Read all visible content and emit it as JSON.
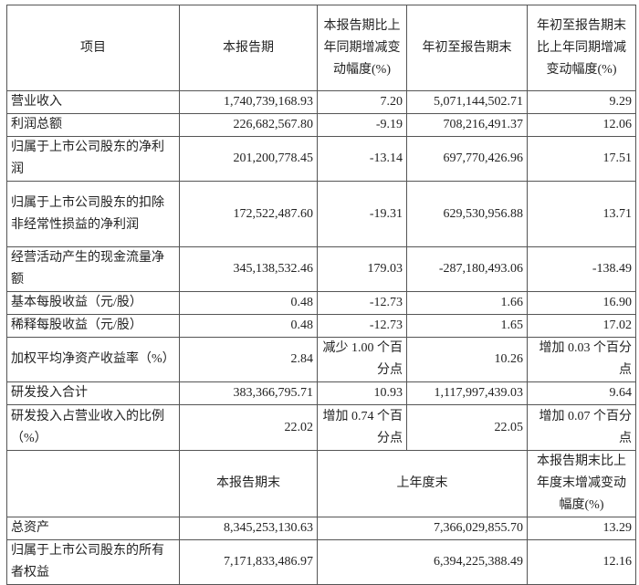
{
  "header": {
    "item": "项目",
    "current_period": "本报告期",
    "current_change": "本报告期比上年同期增减变动幅度(%)",
    "ytd": "年初至报告期末",
    "ytd_change": "年初至报告期末比上年同期增减变动幅度(%)"
  },
  "rows": [
    {
      "item": "营业收入",
      "current": "1,740,739,168.93",
      "change": "7.20",
      "ytd": "5,071,144,502.71",
      "ytd_change": "9.29"
    },
    {
      "item": "利润总额",
      "current": "226,682,567.80",
      "change": "-9.19",
      "ytd": "708,216,491.37",
      "ytd_change": "12.06"
    },
    {
      "item": "归属于上市公司股东的净利润",
      "current": "201,200,778.45",
      "change": "-13.14",
      "ytd": "697,770,426.96",
      "ytd_change": "17.51"
    },
    {
      "item": "归属于上市公司股东的扣除非经常性损益的净利润",
      "current": "172,522,487.60",
      "change": "-19.31",
      "ytd": "629,530,956.88",
      "ytd_change": "13.71"
    },
    {
      "item": "经营活动产生的现金流量净额",
      "current": "345,138,532.46",
      "change": "179.03",
      "ytd": "-287,180,493.06",
      "ytd_change": "-138.49"
    },
    {
      "item": "基本每股收益（元/股）",
      "current": "0.48",
      "change": "-12.73",
      "ytd": "1.66",
      "ytd_change": "16.90"
    },
    {
      "item": "稀释每股收益（元/股）",
      "current": "0.48",
      "change": "-12.73",
      "ytd": "1.65",
      "ytd_change": "17.02"
    },
    {
      "item": "加权平均净资产收益率（%）",
      "current": "2.84",
      "change": "减少 1.00 个百分点",
      "ytd": "10.26",
      "ytd_change": "增加 0.03 个百分点"
    },
    {
      "item": "研发投入合计",
      "current": "383,366,795.71",
      "change": "10.93",
      "ytd": "1,117,997,439.03",
      "ytd_change": "9.64"
    },
    {
      "item": "研发投入占营业收入的比例（%）",
      "current": "22.02",
      "change": "增加 0.74 个百分点",
      "ytd": "22.05",
      "ytd_change": "增加 0.07 个百分点"
    }
  ],
  "header2": {
    "period_end": "本报告期末",
    "prior_year_end": "上年度末",
    "change": "本报告期末比上年度末增减变动幅度(%)"
  },
  "rows2": [
    {
      "item": "总资产",
      "period_end": "8,345,253,130.63",
      "prior_year_end": "7,366,029,855.70",
      "change": "13.29"
    },
    {
      "item": "归属于上市公司股东的所有者权益",
      "period_end": "7,171,833,486.97",
      "prior_year_end": "6,394,225,388.49",
      "change": "12.16"
    }
  ]
}
